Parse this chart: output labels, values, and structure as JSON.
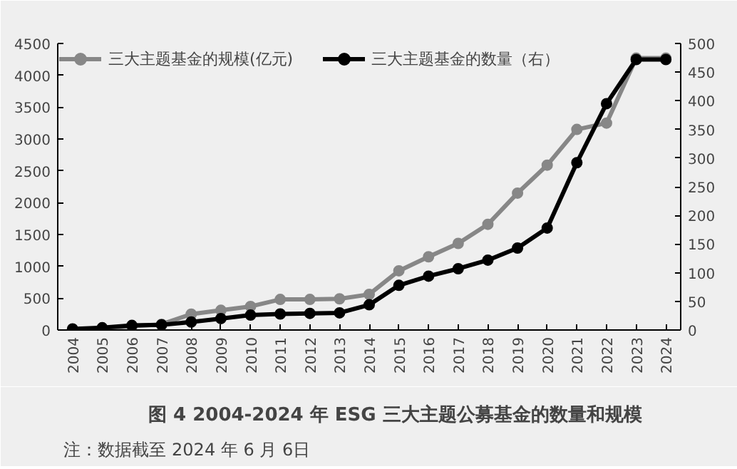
{
  "chart_data": {
    "type": "line",
    "title": "图 4 2004-2024 年 ESG 三大主题公募基金的数量和规模",
    "annotations": [
      "注：数据截至 2024 年 6 月 6日"
    ],
    "categories": [
      "2004",
      "2005",
      "2006",
      "2007",
      "2008",
      "2009",
      "2010",
      "2011",
      "2012",
      "2013",
      "2014",
      "2015",
      "2016",
      "2017",
      "2018",
      "2019",
      "2020",
      "2021",
      "2022",
      "2023",
      "2024"
    ],
    "series": [
      {
        "name": "三大主题基金的规模(亿元)",
        "color": "#878787",
        "values": [
          10,
          20,
          60,
          90,
          250,
          310,
          370,
          480,
          480,
          490,
          560,
          930,
          1150,
          1360,
          1660,
          2150,
          2590,
          3150,
          3250,
          4270,
          4270
        ]
      },
      {
        "name": "三大主题基金的数量（右）",
        "color": "#000000",
        "axis": "y2",
        "values": [
          2,
          4,
          8,
          9,
          14,
          20,
          26,
          28,
          29,
          30,
          44,
          78,
          94,
          107,
          122,
          143,
          178,
          292,
          395,
          472,
          472
        ]
      }
    ],
    "ylim": [
      0,
      4500
    ],
    "yticks": [
      0,
      500,
      1000,
      1500,
      2000,
      2500,
      3000,
      3500,
      4000,
      4500
    ],
    "y2lim": [
      0,
      500
    ],
    "y2ticks": [
      0,
      50,
      100,
      150,
      200,
      250,
      300,
      350,
      400,
      450,
      500
    ],
    "legend": "top",
    "grid": false,
    "marker": "circle",
    "line_style": "solid"
  }
}
